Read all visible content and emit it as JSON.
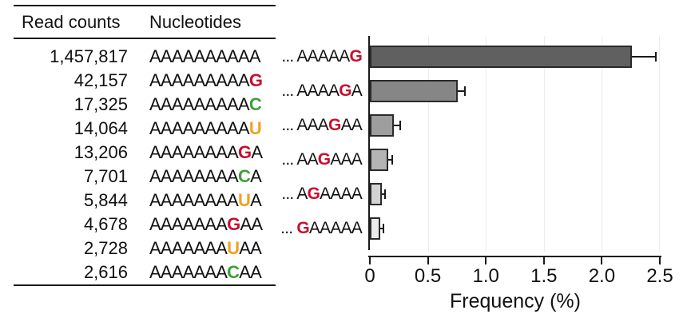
{
  "table": {
    "headers": {
      "read_counts": "Read counts",
      "nucleotides": "Nucleotides"
    },
    "rows": [
      {
        "count": "1,457,817",
        "seq": "AAAAAAAAAA"
      },
      {
        "count": "42,157",
        "seq": "AAAAAAAAAG"
      },
      {
        "count": "17,325",
        "seq": "AAAAAAAAAC"
      },
      {
        "count": "14,064",
        "seq": "AAAAAAAAAU"
      },
      {
        "count": "13,206",
        "seq": "AAAAAAAAGA"
      },
      {
        "count": "7,701",
        "seq": "AAAAAAAACA"
      },
      {
        "count": "5,844",
        "seq": "AAAAAAAAUA"
      },
      {
        "count": "4,678",
        "seq": "AAAAAAAGAA"
      },
      {
        "count": "2,728",
        "seq": "AAAAAAAUAA"
      },
      {
        "count": "2,616",
        "seq": "AAAAAAACAA"
      }
    ]
  },
  "nucleotide_colors": {
    "A": "#111111",
    "G": "#c8102e",
    "C": "#3f9f3a",
    "U": "#efa320"
  },
  "chart_data": {
    "type": "bar",
    "orientation": "horizontal",
    "categories": [
      "... AAAAAG",
      "... AAAAGA",
      "... AAAGAA",
      "... AAGAAA",
      "... AGAAAA",
      "... GAAAAA"
    ],
    "values": [
      2.26,
      0.76,
      0.21,
      0.16,
      0.1,
      0.09
    ],
    "errors": [
      0.2,
      0.055,
      0.045,
      0.025,
      0.022,
      0.02
    ],
    "xlabel": "Frequency (%)",
    "xlim": [
      0,
      2.5
    ],
    "xticks": [
      0,
      0.5,
      1.0,
      1.5,
      2.0,
      2.5
    ],
    "xtick_labels": [
      "0",
      "0.5",
      "1.0",
      "1.5",
      "2.0",
      "2.5"
    ],
    "bar_colors": [
      "#606060",
      "#868686",
      "#9e9e9e",
      "#b4b4b4",
      "#d3d3d3",
      "#eaeaea"
    ],
    "bar_border_color": "#2a2a2a",
    "grid": true,
    "grid_color": "#ededed",
    "legend": "none"
  }
}
